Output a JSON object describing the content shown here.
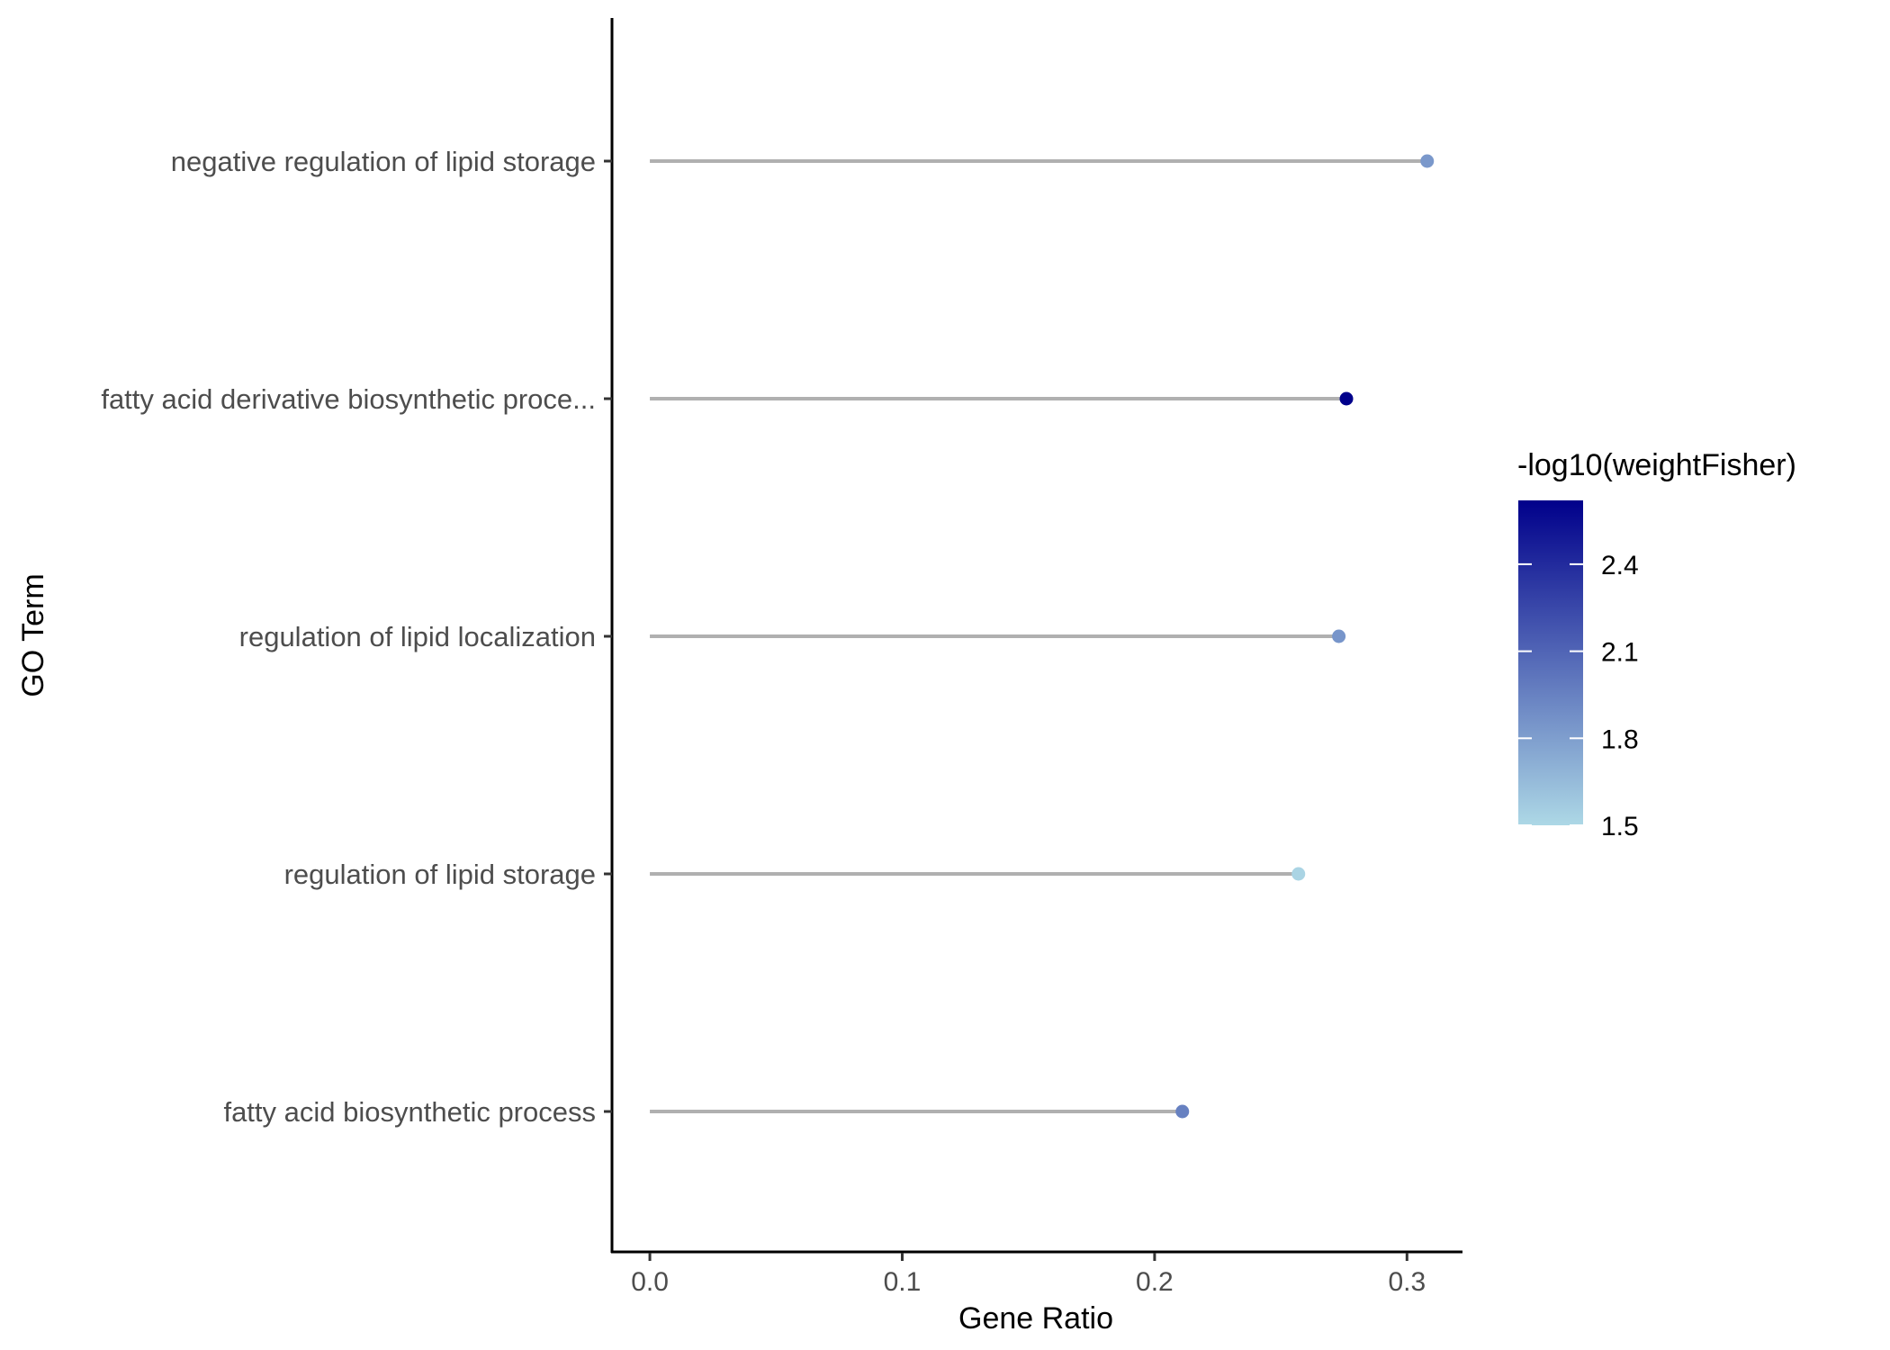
{
  "chart_data": {
    "type": "lollipop",
    "xlabel": "Gene Ratio",
    "ylabel": "GO Term",
    "xlim": [
      -0.015,
      0.322
    ],
    "x_ticks": [
      "0.0",
      "0.1",
      "0.2",
      "0.3"
    ],
    "x_tick_values": [
      0.0,
      0.1,
      0.2,
      0.3
    ],
    "categories": [
      "negative regulation of lipid storage",
      "fatty acid derivative biosynthetic proce...",
      "regulation of lipid localization",
      "regulation of lipid storage",
      "fatty acid biosynthetic process"
    ],
    "values": [
      0.308,
      0.276,
      0.273,
      0.257,
      0.211
    ],
    "color_values": [
      1.83,
      2.62,
      1.85,
      1.52,
      1.95
    ],
    "stem_color": "#b0b0b0",
    "grid": false,
    "legend": {
      "title": "-log10(weightFisher)",
      "position": "right",
      "ticks": [
        "2.4",
        "2.1",
        "1.8",
        "1.5"
      ],
      "tick_values": [
        2.4,
        2.1,
        1.8,
        1.5
      ],
      "range": [
        1.5,
        2.62
      ],
      "low_color": "#add8e6",
      "high_color": "#00008b"
    }
  }
}
